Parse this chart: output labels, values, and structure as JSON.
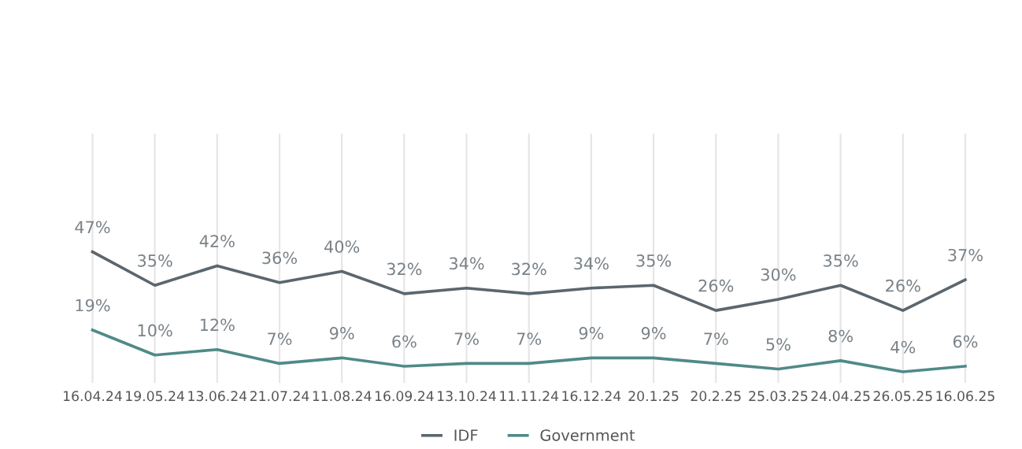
{
  "chart_data": {
    "type": "line",
    "categories": [
      "16.04.24",
      "19.05.24",
      "13.06.24",
      "21.07.24",
      "11.08.24",
      "16.09.24",
      "13.10.24",
      "11.11.24",
      "16.12.24",
      "20.1.25",
      "20.2.25",
      "25.03.25",
      "24.04.25",
      "26.05.25",
      "16.06.25"
    ],
    "series": [
      {
        "name": "IDF",
        "color": "#5b666e",
        "values": [
          47,
          35,
          42,
          36,
          40,
          32,
          34,
          32,
          34,
          35,
          26,
          30,
          35,
          26,
          37
        ],
        "value_labels": [
          "47%",
          "35%",
          "42%",
          "36%",
          "40%",
          "32%",
          "34%",
          "32%",
          "34%",
          "35%",
          "26%",
          "30%",
          "35%",
          "26%",
          "37%"
        ]
      },
      {
        "name": "Government",
        "color": "#4f8a88",
        "values": [
          19,
          10,
          12,
          7,
          9,
          6,
          7,
          7,
          9,
          9,
          7,
          5,
          8,
          4,
          6
        ],
        "value_labels": [
          "19%",
          "10%",
          "12%",
          "7%",
          "9%",
          "6%",
          "7%",
          "7%",
          "9%",
          "9%",
          "7%",
          "5%",
          "8%",
          "4%",
          "6%"
        ]
      }
    ],
    "grid": "x",
    "legend": "bottom",
    "marker": "none",
    "line_style": "solid"
  }
}
